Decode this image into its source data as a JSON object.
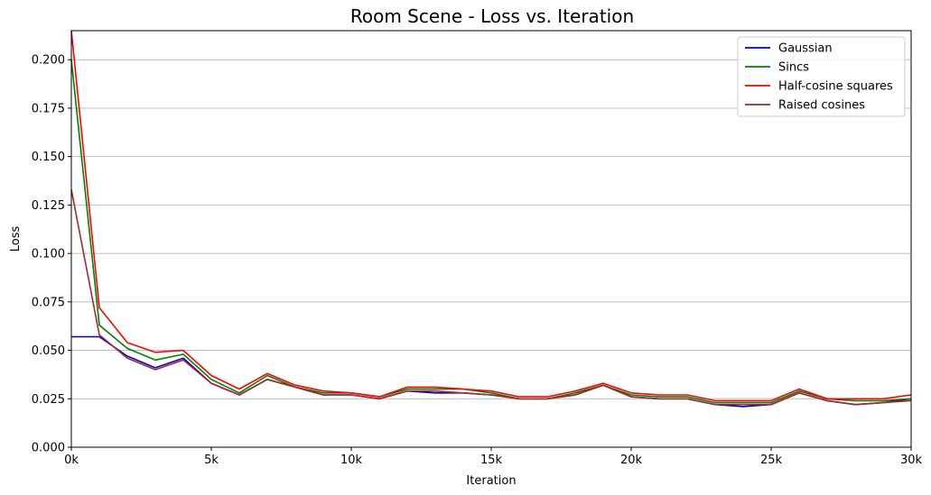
{
  "chart_data": {
    "type": "line",
    "title": "Room Scene - Loss vs. Iteration",
    "xlabel": "Iteration",
    "ylabel": "Loss",
    "xlim": [
      0,
      30000
    ],
    "ylim": [
      0,
      0.215
    ],
    "grid": "horizontal",
    "legend_position": "top-right",
    "x_ticks": [
      0,
      5000,
      10000,
      15000,
      20000,
      25000,
      30000
    ],
    "x_tick_labels": [
      "0k",
      "5k",
      "10k",
      "15k",
      "20k",
      "25k",
      "30k"
    ],
    "y_ticks": [
      0,
      0.025,
      0.05,
      0.075,
      0.1,
      0.125,
      0.15,
      0.175,
      0.2
    ],
    "y_tick_labels": [
      "0.000",
      "0.025",
      "0.050",
      "0.075",
      "0.100",
      "0.125",
      "0.150",
      "0.175",
      "0.200"
    ],
    "x": [
      0,
      1000,
      2000,
      3000,
      4000,
      5000,
      6000,
      7000,
      8000,
      9000,
      10000,
      11000,
      12000,
      13000,
      14000,
      15000,
      16000,
      17000,
      18000,
      19000,
      20000,
      21000,
      22000,
      23000,
      24000,
      25000,
      26000,
      27000,
      28000,
      29000,
      30000
    ],
    "series": [
      {
        "name": "Gaussian",
        "color": "#0000cc",
        "values": [
          0.057,
          0.057,
          0.047,
          0.041,
          0.046,
          0.033,
          0.027,
          0.035,
          0.031,
          0.027,
          0.027,
          0.025,
          0.029,
          0.028,
          0.028,
          0.027,
          0.025,
          0.025,
          0.027,
          0.032,
          0.026,
          0.025,
          0.025,
          0.022,
          0.021,
          0.022,
          0.028,
          0.024,
          0.022,
          0.023,
          0.025
        ]
      },
      {
        "name": "Sincs",
        "color": "#008000",
        "values": [
          0.2,
          0.063,
          0.051,
          0.045,
          0.048,
          0.035,
          0.028,
          0.037,
          0.031,
          0.028,
          0.028,
          0.026,
          0.03,
          0.03,
          0.03,
          0.028,
          0.025,
          0.025,
          0.028,
          0.032,
          0.027,
          0.026,
          0.026,
          0.023,
          0.023,
          0.023,
          0.029,
          0.025,
          0.024,
          0.024,
          0.025
        ]
      },
      {
        "name": "Half-cosine squares",
        "color": "#ff0000",
        "values": [
          0.215,
          0.072,
          0.054,
          0.049,
          0.05,
          0.037,
          0.03,
          0.038,
          0.032,
          0.029,
          0.028,
          0.026,
          0.031,
          0.031,
          0.03,
          0.029,
          0.026,
          0.026,
          0.029,
          0.033,
          0.028,
          0.027,
          0.027,
          0.024,
          0.024,
          0.024,
          0.03,
          0.025,
          0.025,
          0.025,
          0.027
        ]
      },
      {
        "name": "Raised cosines",
        "color": "#a52a2a",
        "values": [
          0.133,
          0.058,
          0.046,
          0.04,
          0.045,
          0.033,
          0.027,
          0.035,
          0.031,
          0.027,
          0.027,
          0.025,
          0.029,
          0.029,
          0.028,
          0.027,
          0.025,
          0.025,
          0.027,
          0.032,
          0.026,
          0.025,
          0.025,
          0.022,
          0.022,
          0.022,
          0.028,
          0.024,
          0.022,
          0.023,
          0.024
        ]
      }
    ]
  }
}
